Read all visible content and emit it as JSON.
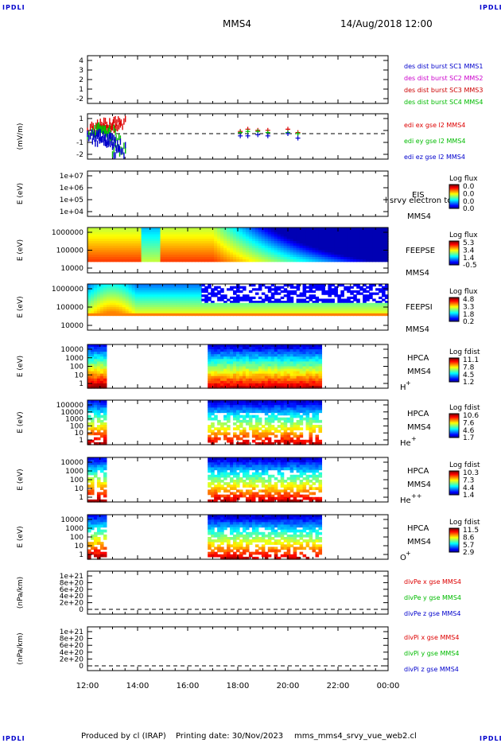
{
  "corners": {
    "tl": "IPDLI",
    "tr": "IPDLI",
    "bl": "IPDLI",
    "br": "IPDLI"
  },
  "header": {
    "spacecraft": "MMS4",
    "datetime": "14/Aug/2018 12:00"
  },
  "footer": {
    "produced_by": "Produced by cl (IRAP)",
    "printing_date": "Printing date: 30/Nov/2023",
    "script": "mms_mms4_srvy_vue_web2.cl"
  },
  "colors": {
    "ms1": "#0000cc",
    "ms2": "#cc00cc",
    "ms3": "#cc0000",
    "ms4": "#00bb00",
    "x": "#dd0000",
    "y": "#00bb00",
    "z": "#0000cc"
  },
  "chart_data": [
    {
      "id": "dist",
      "type": "line",
      "x_range": [
        "12:00",
        "00:00"
      ],
      "ylim": [
        -2,
        4.5
      ],
      "y_ticks": [
        "4",
        "3",
        "2",
        "1",
        "-2"
      ],
      "legend": [
        {
          "label": "des dist burst SC1 MMS1",
          "color": "ms1"
        },
        {
          "label": "des dist burst SC2 MMS2",
          "color": "ms2"
        },
        {
          "label": "des dist burst SC3 MMS3",
          "color": "ms3"
        },
        {
          "label": "des dist burst SC4 MMS4",
          "color": "ms4"
        }
      ],
      "series": []
    },
    {
      "id": "edi",
      "type": "line",
      "ylabel": "(mV/m)",
      "ylim": [
        -2,
        1.5
      ],
      "y_ticks": [
        "1",
        "0",
        "-1",
        "-2"
      ],
      "legend": [
        {
          "label": "edi ex gse l2 MMS4",
          "color": "x"
        },
        {
          "label": "edi ey gse l2 MMS4",
          "color": "y"
        },
        {
          "label": "edi ez gse l2 MMS4",
          "color": "z"
        }
      ],
      "series": [
        {
          "name": "edi ex gse l2 MMS4",
          "color": "x",
          "x_hours": [
            12.0,
            12.2,
            12.4,
            12.6,
            12.8,
            13.0,
            18.1,
            18.4,
            18.8,
            19.2,
            20.0,
            20.4
          ],
          "values": [
            0.4,
            0.5,
            0.6,
            0.7,
            0.8,
            1.0,
            0.2,
            0.4,
            0.3,
            0.3,
            0.4,
            0.1
          ]
        },
        {
          "name": "edi ey gse l2 MMS4",
          "color": "y",
          "x_hours": [
            12.0,
            12.2,
            12.4,
            12.6,
            12.8,
            13.0,
            18.1,
            18.4,
            18.8,
            19.2,
            20.0,
            20.4
          ],
          "values": [
            0.2,
            0.4,
            0.3,
            0.1,
            -0.6,
            -1.4,
            0.1,
            0.2,
            0.2,
            0.1,
            0.1,
            0.0
          ]
        },
        {
          "name": "edi ez gse l2 MMS4",
          "color": "z",
          "x_hours": [
            12.0,
            12.2,
            12.4,
            12.6,
            12.8,
            13.0,
            18.1,
            18.4,
            18.8,
            19.2,
            20.0,
            20.4
          ],
          "values": [
            -0.3,
            -0.4,
            -0.5,
            -0.6,
            -1.0,
            -1.5,
            -0.2,
            -0.2,
            -0.1,
            -0.2,
            0.0,
            -0.4
          ]
        }
      ]
    },
    {
      "id": "eis",
      "type": "heatmap",
      "ylabel": "E (eV)",
      "y_ticks": [
        "1e+07",
        "1e+06",
        "1e+05",
        "1e+04"
      ],
      "labels": [
        "EIS",
        "MMS4"
      ],
      "overlap_text": "l srvy electron tof",
      "colorbar": {
        "title": "Log flux",
        "ticks": [
          "0.0",
          "0.0",
          "0.0",
          "0.0"
        ]
      }
    },
    {
      "id": "feepse",
      "type": "heatmap",
      "ylabel": "E (eV)",
      "y_ticks": [
        "1000000",
        "100000",
        "10000"
      ],
      "labels": [
        "FEEPSE",
        "MMS4"
      ],
      "colorbar": {
        "title": "Log flux",
        "ticks": [
          "5.3",
          "3.4",
          "1.4",
          "-0.5"
        ]
      }
    },
    {
      "id": "feepsi",
      "type": "heatmap",
      "ylabel": "E (eV)",
      "y_ticks": [
        "1000000",
        "100000",
        "10000"
      ],
      "labels": [
        "FEEPSI",
        "MMS4"
      ],
      "colorbar": {
        "title": "Log flux",
        "ticks": [
          "4.8",
          "3.3",
          "1.8",
          "0.2"
        ]
      }
    },
    {
      "id": "hpca_h",
      "type": "heatmap",
      "ylabel": "E (eV)",
      "y_ticks": [
        "10000",
        "1000",
        "100",
        "10",
        "1"
      ],
      "labels": [
        "HPCA",
        "MMS4"
      ],
      "species": "H",
      "species_sup": "+",
      "data_intervals_hours": [
        [
          12.0,
          12.75
        ],
        [
          16.85,
          21.35
        ]
      ],
      "colorbar": {
        "title": "Log fdist",
        "ticks": [
          "11.1",
          "7.8",
          "4.5",
          "1.2"
        ]
      }
    },
    {
      "id": "hpca_he",
      "type": "heatmap",
      "ylabel": "E (eV)",
      "y_ticks": [
        "100000",
        "10000",
        "1000",
        "100",
        "10",
        "1"
      ],
      "labels": [
        "HPCA",
        "MMS4"
      ],
      "species": "He",
      "species_sup": "+",
      "data_intervals_hours": [
        [
          12.0,
          12.75
        ],
        [
          16.85,
          21.35
        ]
      ],
      "colorbar": {
        "title": "Log fdist",
        "ticks": [
          "10.6",
          "7.6",
          "4.6",
          "1.7"
        ]
      }
    },
    {
      "id": "hpca_hepp",
      "type": "heatmap",
      "ylabel": "E (eV)",
      "y_ticks": [
        "10000",
        "1000",
        "100",
        "10",
        "1"
      ],
      "labels": [
        "HPCA",
        "MMS4"
      ],
      "species": "He",
      "species_sup": "++",
      "data_intervals_hours": [
        [
          12.0,
          12.75
        ],
        [
          16.85,
          21.35
        ]
      ],
      "colorbar": {
        "title": "Log fdist",
        "ticks": [
          "10.3",
          "7.3",
          "4.4",
          "1.4"
        ]
      }
    },
    {
      "id": "hpca_o",
      "type": "heatmap",
      "ylabel": "E (eV)",
      "y_ticks": [
        "10000",
        "1000",
        "100",
        "10",
        "1"
      ],
      "labels": [
        "HPCA",
        "MMS4"
      ],
      "species": "O",
      "species_sup": "+",
      "data_intervals_hours": [
        [
          12.0,
          12.75
        ],
        [
          16.85,
          21.35
        ]
      ],
      "colorbar": {
        "title": "Log fdist",
        "ticks": [
          "11.5",
          "8.6",
          "5.7",
          "2.9"
        ]
      }
    },
    {
      "id": "dpe",
      "type": "line",
      "ylabel": "(nPa/km)",
      "y_ticks": [
        "1e+21",
        "8e+20",
        "6e+20",
        "4e+20",
        "2e+20",
        "0"
      ],
      "legend": [
        {
          "label": "divPe x gse MMS4",
          "color": "x"
        },
        {
          "label": "divPe y gse MMS4",
          "color": "y"
        },
        {
          "label": "divPe z gse MMS4",
          "color": "z"
        }
      ],
      "series": []
    },
    {
      "id": "dpi",
      "type": "line",
      "ylabel": "(nPa/km)",
      "y_ticks": [
        "1e+21",
        "8e+20",
        "6e+20",
        "4e+20",
        "2e+20",
        "0"
      ],
      "legend": [
        {
          "label": "divPi x gse MMS4",
          "color": "x"
        },
        {
          "label": "divPi y gse MMS4",
          "color": "y"
        },
        {
          "label": "divPi z gse MMS4",
          "color": "z"
        }
      ],
      "series": []
    }
  ],
  "x_axis": {
    "ticks": [
      "12:00",
      "14:00",
      "16:00",
      "18:00",
      "20:00",
      "22:00",
      "00:00"
    ]
  }
}
